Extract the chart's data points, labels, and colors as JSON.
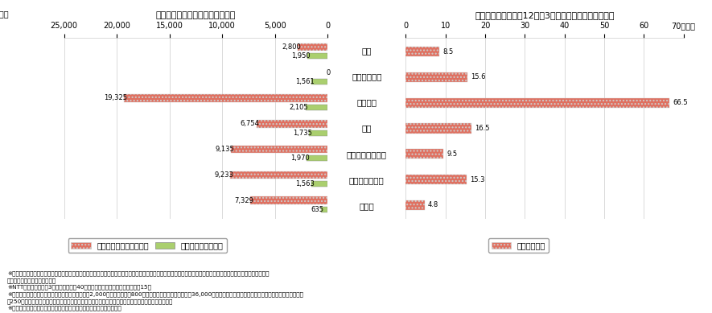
{
  "title_left": "住宅用の加入時一時金・基本料金",
  "title_right": "市内通話料金（平日12時に3分間通話した場合の料金）",
  "cities": [
    "東京",
    "ニューヨーク",
    "ロンドン",
    "パリ",
    "デュッセルドルフ",
    "ストックホルム",
    "ソウル"
  ],
  "joining_fee": [
    2800,
    0,
    19325,
    6754,
    9135,
    9233,
    7329
  ],
  "basic_fee": [
    1950,
    1561,
    2105,
    1735,
    1970,
    1563,
    635
  ],
  "call_fee": [
    8.5,
    15.6,
    66.5,
    16.5,
    9.5,
    15.3,
    4.8
  ],
  "joining_fee_labels": [
    "2,800",
    "0",
    "19,325",
    "6,754",
    "9,135",
    "9,233",
    "7,329"
  ],
  "basic_fee_labels": [
    "1,950",
    "1,561",
    "2,105",
    "1,735",
    "1,970",
    "1,563",
    "635"
  ],
  "call_fee_labels": [
    "8.5",
    "15.6",
    "66.5",
    "16.5",
    "9.5",
    "15.3",
    "4.8"
  ],
  "left_xlim": [
    25000,
    0
  ],
  "right_xlim": [
    0,
    70
  ],
  "left_xticks": [
    25000,
    20000,
    15000,
    10000,
    5000,
    0
  ],
  "right_xticks": [
    0,
    10,
    20,
    30,
    40,
    50,
    60,
    70
  ],
  "color_joining": "#E07060",
  "color_basic": "#AACF6E",
  "color_call": "#E07060",
  "legend_left1": "加入時一時金（住宅用）",
  "legend_left2": "基本料金（住宅用）",
  "legend_right": "市内通話料金",
  "footnote1": "※各都市とも月額基本料金に一定の通話料金を含むプランや通話料が通話間、通信距離によらないプランなど多様な料金体系が導入されており、月額料金による単純",
  "footnote2": "　な比較は困難となっている。",
  "footnote3": "※NTT東日本の住宅用3級局（加入者各40万人以上の区分）のライトプラン＊15。",
  "footnote4": "※東京の加入時一時金は、ライトプランの工事費（2,000円）と契約料（800円）。なお、施設設置負担金（36,000円）を支払うプラン（ライトプランに比べ、月額基本料が",
  "footnote5": "　250円割安）も存在するが、近年の新規加入者の実態に鑑み、本年度調査にはライトプランを採用。",
  "footnote6": "※ニューヨークの加入時一時金は、インターネット手続きにより無料。",
  "fig_width": 8.85,
  "fig_height": 3.89,
  "background_color": "#ffffff"
}
